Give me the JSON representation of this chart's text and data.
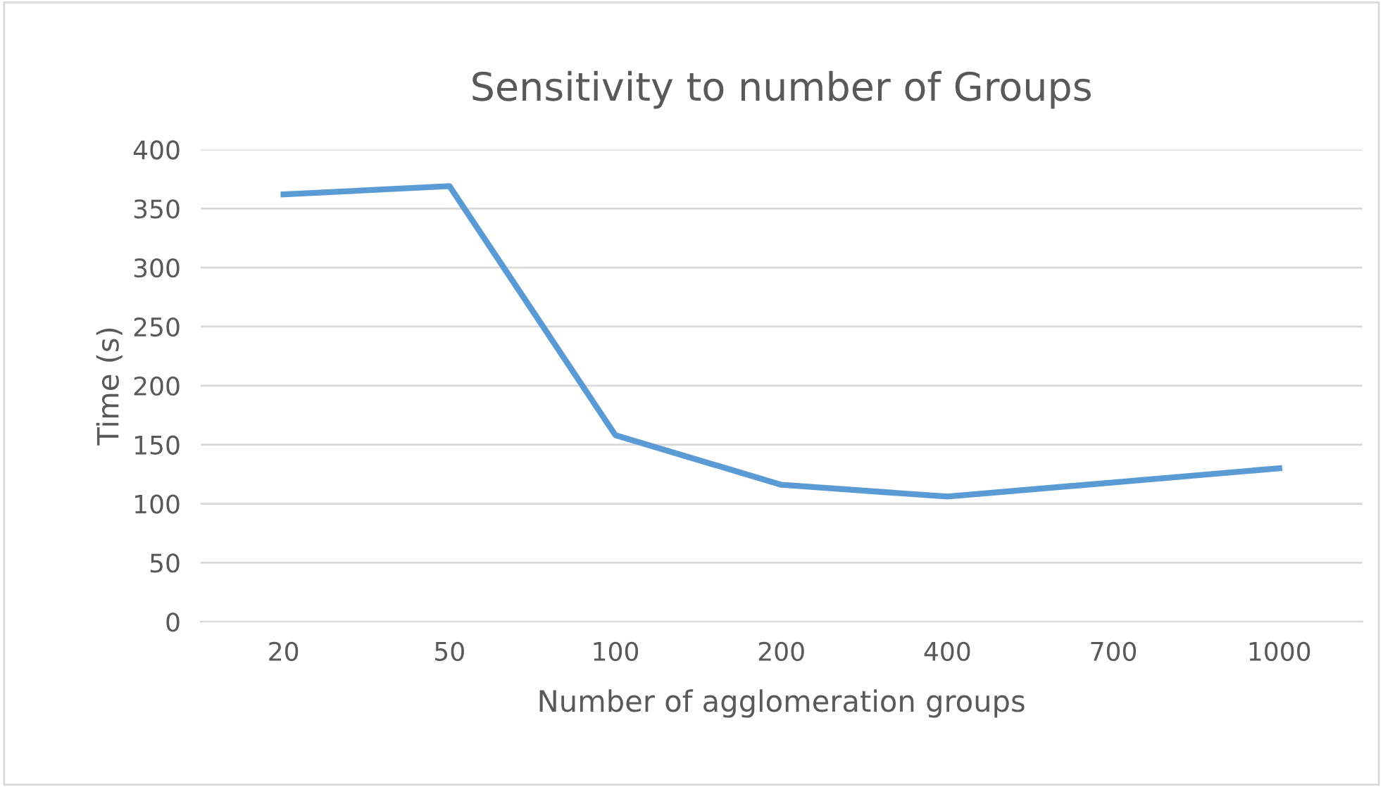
{
  "chart_data": {
    "type": "line",
    "title": "Sensitivity to number of Groups",
    "xlabel": "Number of agglomeration groups",
    "ylabel": "Time (s)",
    "categories": [
      "20",
      "50",
      "100",
      "200",
      "400",
      "700",
      "1000"
    ],
    "series": [
      {
        "color": "#5b9bd5",
        "values": [
          362,
          369,
          158,
          116,
          106,
          118,
          130
        ]
      }
    ],
    "ylim": [
      0,
      400
    ],
    "yticks": [
      0,
      50,
      100,
      150,
      200,
      250,
      300,
      350,
      400
    ],
    "grid": "y",
    "marker": "none",
    "line_style": "solid"
  }
}
